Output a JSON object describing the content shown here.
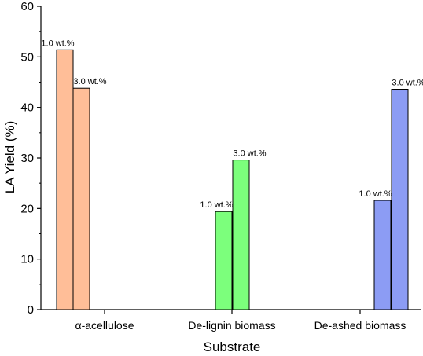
{
  "chart_data": {
    "type": "bar",
    "xlabel": "Substrate",
    "ylabel": "LA Yield (%)",
    "ylim": [
      0,
      60
    ],
    "yticks": [
      0,
      10,
      20,
      30,
      40,
      50,
      60
    ],
    "grid": false,
    "categories": [
      "α-acellulose",
      "De-lignin biomass",
      "De-ashed biomass"
    ],
    "bars": [
      {
        "category_index": 0,
        "value": 51.4,
        "label": "1.0 wt.%",
        "color": "#FFBE98"
      },
      {
        "category_index": 0,
        "value": 43.8,
        "label": "3.0 wt.%",
        "color": "#FFBE98"
      },
      {
        "category_index": 1,
        "value": 19.4,
        "label": "1.0 wt.%",
        "color": "#7CFF7C"
      },
      {
        "category_index": 1,
        "value": 29.6,
        "label": "3.0 wt.%",
        "color": "#7CFF7C"
      },
      {
        "category_index": 2,
        "value": 21.6,
        "label": "1.0 wt.%",
        "color": "#8C9CF4"
      },
      {
        "category_index": 2,
        "value": 43.6,
        "label": "3.0 wt.%",
        "color": "#8C9CF4"
      }
    ]
  }
}
